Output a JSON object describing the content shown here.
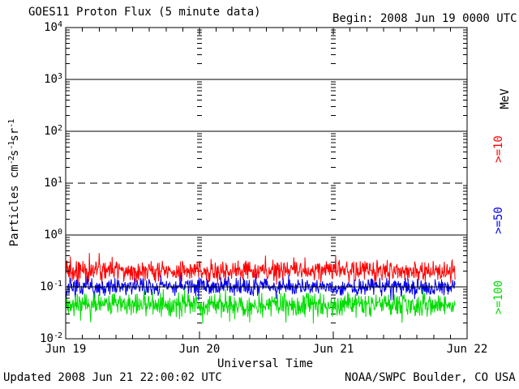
{
  "header": {
    "begin_label": "Begin: 2008 Jun 19 0000 UTC"
  },
  "footer": {
    "updated_label": "Updated 2008 Jun 21 22:00:02 UTC",
    "source_label": "NOAA/SWPC Boulder, CO USA"
  },
  "chart_data": {
    "type": "line",
    "title": "GOES11 Proton Flux (5 minute data)",
    "xlabel": "Universal Time",
    "ylabel_parts": {
      "p1": "Particles cm",
      "e1": "-2",
      "p2": "s",
      "e2": "-1",
      "p3": "sr",
      "e3": "-1"
    },
    "right_axis_unit": "MeV",
    "y_scale": "log",
    "ylim": [
      0.01,
      10000
    ],
    "y_ticks": [
      {
        "base": "10",
        "exp": "4"
      },
      {
        "base": "10",
        "exp": "3"
      },
      {
        "base": "10",
        "exp": "2"
      },
      {
        "base": "10",
        "exp": "1"
      },
      {
        "base": "10",
        "exp": "0"
      },
      {
        "base": "10",
        "exp": "-1"
      },
      {
        "base": "10",
        "exp": "-2"
      }
    ],
    "x_ticks": [
      "Jun 19",
      "Jun 20",
      "Jun 21",
      "Jun 22"
    ],
    "x_span_days": 3,
    "minor_tick_hours": 3,
    "sample_minutes": 5,
    "data_end_day_fraction": 2.91,
    "grid_decades_solid": [
      1000,
      100,
      1,
      0.1
    ],
    "threshold": {
      "value": 10,
      "line_style": "dashed"
    },
    "series": [
      {
        "name": ">=10",
        "unit": "MeV",
        "color": "#ff0000",
        "typical_flux": 0.2,
        "min_flux": 0.11,
        "max_flux": 0.45
      },
      {
        "name": ">=50",
        "unit": "MeV",
        "color": "#0000ee",
        "typical_flux": 0.1,
        "min_flux": 0.055,
        "max_flux": 0.18
      },
      {
        "name": ">=100",
        "unit": "MeV",
        "color": "#00dd00",
        "typical_flux": 0.045,
        "min_flux": 0.018,
        "max_flux": 0.09
      }
    ]
  }
}
